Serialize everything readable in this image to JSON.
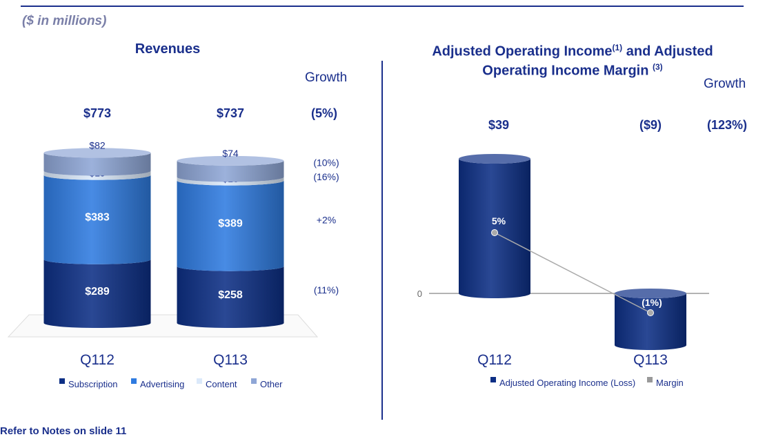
{
  "subtitle": "($ in millions)",
  "footer_note": "Refer to Notes on slide 11",
  "colors": {
    "subscription": "#0d2f85",
    "advertising": "#2f7be0",
    "content": "#dbe9fa",
    "other": "#8fa6d6",
    "aoi_bar": "#0d2f85",
    "margin": "#999999",
    "text": "#1a2f8c"
  },
  "chart_data": [
    {
      "type": "bar",
      "stacked": true,
      "title": "Revenues",
      "categories": [
        "Q112",
        "Q113"
      ],
      "totals": [
        "$773",
        "$737"
      ],
      "series": [
        {
          "name": "Subscription",
          "values": [
            289,
            258
          ],
          "labels": [
            "$289",
            "$258"
          ],
          "growth": "(11%)"
        },
        {
          "name": "Advertising",
          "values": [
            383,
            389
          ],
          "labels": [
            "$383",
            "$389"
          ],
          "growth": "+2%"
        },
        {
          "name": "Content",
          "values": [
            19,
            16
          ],
          "labels": [
            "$19",
            "$16"
          ],
          "growth": "(16%)"
        },
        {
          "name": "Other",
          "values": [
            82,
            74
          ],
          "labels": [
            "$82",
            "$74"
          ],
          "growth": "(10%)"
        }
      ],
      "growth_header": "Growth",
      "total_growth": "(5%)",
      "legend_position": "bottom"
    },
    {
      "type": "bar",
      "title_parts": {
        "a": "Adjusted Operating Income",
        "sup1": "(1)",
        "b": " and Adjusted",
        "c": "Operating Income Margin",
        "sup2": "(3)"
      },
      "categories": [
        "Q112",
        "Q113"
      ],
      "series": [
        {
          "name": "Adjusted Operating Income (Loss)",
          "values": [
            39,
            -9
          ],
          "labels": [
            "$39",
            "($9)"
          ]
        },
        {
          "name": "Margin",
          "type": "line",
          "values": [
            5,
            -1
          ],
          "labels": [
            "5%",
            "(1%)"
          ]
        }
      ],
      "growth_header": "Growth",
      "growth": "(123%)",
      "zero_label": "0",
      "legend_position": "bottom"
    }
  ]
}
